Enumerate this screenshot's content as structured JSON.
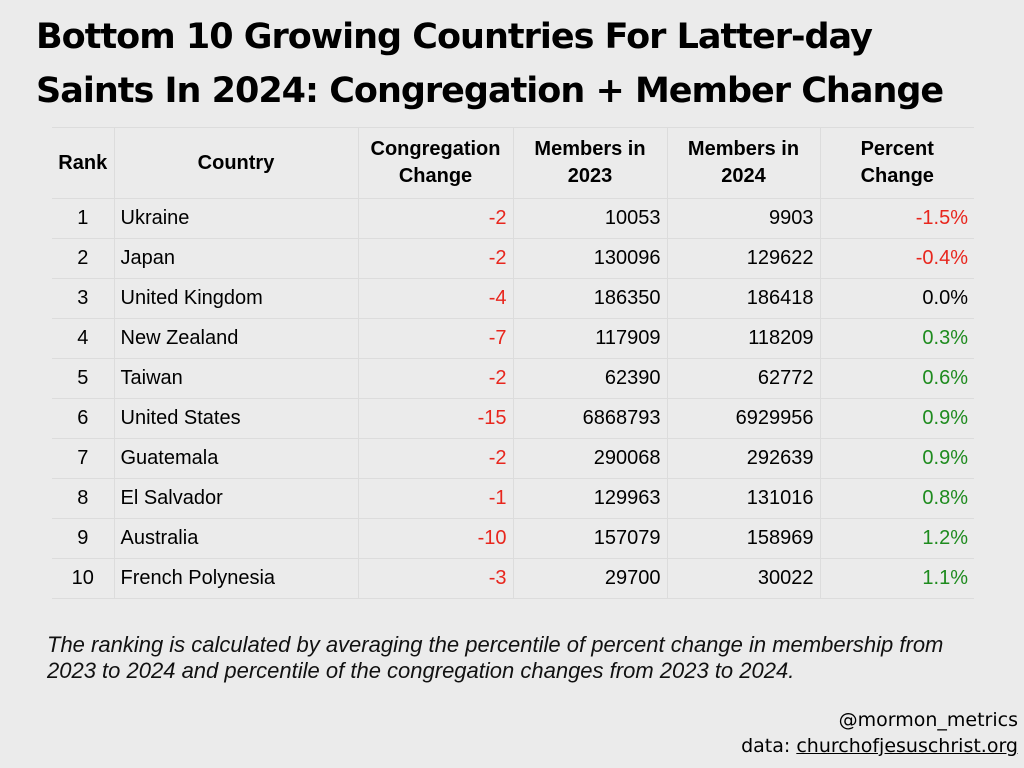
{
  "title_line1": "Bottom 10 Growing Countries For Latter-day",
  "title_line2": "Saints In 2024: Congregation + Member Change",
  "table": {
    "headers": {
      "rank": "Rank",
      "country": "Country",
      "cong_line1": "Congregation",
      "cong_line2": "Change",
      "m2023_line1": "Members in",
      "m2023_line2": "2023",
      "m2024_line1": "Members in",
      "m2024_line2": "2024",
      "pct_line1": "Percent",
      "pct_line2": "Change"
    },
    "rows": [
      {
        "rank": "1",
        "country": "Ukraine",
        "congregation_change": "-2",
        "members_2023": "10053",
        "members_2024": "9903",
        "percent_change": "-1.5%"
      },
      {
        "rank": "2",
        "country": "Japan",
        "congregation_change": "-2",
        "members_2023": "130096",
        "members_2024": "129622",
        "percent_change": "-0.4%"
      },
      {
        "rank": "3",
        "country": "United Kingdom",
        "congregation_change": "-4",
        "members_2023": "186350",
        "members_2024": "186418",
        "percent_change": "0.0%"
      },
      {
        "rank": "4",
        "country": "New Zealand",
        "congregation_change": "-7",
        "members_2023": "117909",
        "members_2024": "118209",
        "percent_change": "0.3%"
      },
      {
        "rank": "5",
        "country": "Taiwan",
        "congregation_change": "-2",
        "members_2023": "62390",
        "members_2024": "62772",
        "percent_change": "0.6%"
      },
      {
        "rank": "6",
        "country": "United States",
        "congregation_change": "-15",
        "members_2023": "6868793",
        "members_2024": "6929956",
        "percent_change": "0.9%"
      },
      {
        "rank": "7",
        "country": "Guatemala",
        "congregation_change": "-2",
        "members_2023": "290068",
        "members_2024": "292639",
        "percent_change": "0.9%"
      },
      {
        "rank": "8",
        "country": "El Salvador",
        "congregation_change": "-1",
        "members_2023": "129963",
        "members_2024": "131016",
        "percent_change": "0.8%"
      },
      {
        "rank": "9",
        "country": "Australia",
        "congregation_change": "-10",
        "members_2023": "157079",
        "members_2024": "158969",
        "percent_change": "1.2%"
      },
      {
        "rank": "10",
        "country": "French Polynesia",
        "congregation_change": "-3",
        "members_2023": "29700",
        "members_2024": "30022",
        "percent_change": "1.1%"
      }
    ]
  },
  "note": "The ranking is calculated by averaging the percentile of percent change in membership from 2023 to 2024 and percentile of the congregation changes from 2023 to 2024.",
  "credit_handle": "@mormon_metrics",
  "credit_source_prefix": "data: ",
  "credit_source_link": "churchofjesuschrist.org",
  "colors": {
    "background": "#ebebeb",
    "negative": "#e8261d",
    "positive": "#1e8b1e",
    "neutral": "#000000",
    "grid": "#dcdcdc"
  },
  "chart_data": {
    "type": "table",
    "title": "Bottom 10 Growing Countries For Latter-day Saints In 2024: Congregation + Member Change",
    "columns": [
      "Rank",
      "Country",
      "Congregation Change",
      "Members in 2023",
      "Members in 2024",
      "Percent Change"
    ],
    "rows": [
      [
        1,
        "Ukraine",
        -2,
        10053,
        9903,
        -1.5
      ],
      [
        2,
        "Japan",
        -2,
        130096,
        129622,
        -0.4
      ],
      [
        3,
        "United Kingdom",
        -4,
        186350,
        186418,
        0.0
      ],
      [
        4,
        "New Zealand",
        -7,
        117909,
        118209,
        0.3
      ],
      [
        5,
        "Taiwan",
        -2,
        62390,
        62772,
        0.6
      ],
      [
        6,
        "United States",
        -15,
        6868793,
        6929956,
        0.9
      ],
      [
        7,
        "Guatemala",
        -2,
        290068,
        292639,
        0.9
      ],
      [
        8,
        "El Salvador",
        -1,
        129963,
        131016,
        0.8
      ],
      [
        9,
        "Australia",
        -10,
        157079,
        158969,
        1.2
      ],
      [
        10,
        "French Polynesia",
        -3,
        29700,
        30022,
        1.1
      ]
    ]
  }
}
